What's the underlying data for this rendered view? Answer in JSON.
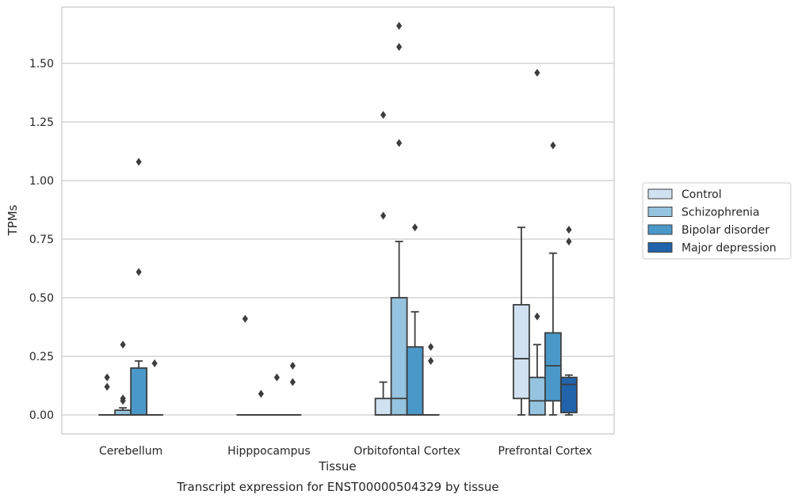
{
  "caption": "Transcript expression for ENST00000504329 by tissue",
  "chart_data": {
    "type": "box",
    "xlabel": "Tissue",
    "ylabel": "TPMs",
    "ylim": [
      -0.08,
      1.75
    ],
    "y_ticks": [
      "0.00",
      "0.25",
      "0.50",
      "0.75",
      "1.00",
      "1.25",
      "1.50"
    ],
    "grid": "horizontal",
    "legend_position": "right",
    "categories": [
      "Cerebellum",
      "Hipppocampus",
      "Orbitofontal Cortex",
      "Prefrontal Cortex"
    ],
    "series": [
      {
        "name": "Control",
        "color": "#d0e1f2",
        "boxes": [
          {
            "q1": 0,
            "median": 0,
            "q3": 0,
            "whislo": 0,
            "whishi": 0,
            "fliers": [
              0.16,
              0.12
            ]
          },
          {
            "q1": 0,
            "median": 0,
            "q3": 0,
            "whislo": 0,
            "whishi": 0,
            "fliers": [
              0.41
            ]
          },
          {
            "q1": 0,
            "median": 0,
            "q3": 0.07,
            "whislo": 0,
            "whishi": 0.14,
            "fliers": [
              1.28,
              0.85
            ]
          },
          {
            "q1": 0.07,
            "median": 0.24,
            "q3": 0.47,
            "whislo": 0,
            "whishi": 0.8,
            "fliers": []
          }
        ]
      },
      {
        "name": "Schizophrenia",
        "color": "#94c4df",
        "boxes": [
          {
            "q1": 0,
            "median": 0,
            "q3": 0.02,
            "whislo": 0,
            "whishi": 0.03,
            "fliers": [
              0.3,
              0.07,
              0.06
            ]
          },
          {
            "q1": 0,
            "median": 0,
            "q3": 0,
            "whislo": 0,
            "whishi": 0,
            "fliers": [
              0.09
            ]
          },
          {
            "q1": 0,
            "median": 0.07,
            "q3": 0.5,
            "whislo": 0,
            "whishi": 0.74,
            "fliers": [
              1.66,
              1.57,
              1.16
            ]
          },
          {
            "q1": 0,
            "median": 0.06,
            "q3": 0.16,
            "whislo": 0,
            "whishi": 0.3,
            "fliers": [
              1.46,
              0.42
            ]
          }
        ]
      },
      {
        "name": "Bipolar disorder",
        "color": "#4a98c9",
        "boxes": [
          {
            "q1": 0,
            "median": 0,
            "q3": 0.2,
            "whislo": 0,
            "whishi": 0.23,
            "fliers": [
              1.08,
              0.61
            ]
          },
          {
            "q1": 0,
            "median": 0,
            "q3": 0,
            "whislo": 0,
            "whishi": 0,
            "fliers": [
              0.16
            ]
          },
          {
            "q1": 0,
            "median": 0,
            "q3": 0.29,
            "whislo": 0,
            "whishi": 0.44,
            "fliers": [
              0.8
            ]
          },
          {
            "q1": 0.06,
            "median": 0.21,
            "q3": 0.35,
            "whislo": 0,
            "whishi": 0.69,
            "fliers": [
              1.15
            ]
          }
        ]
      },
      {
        "name": "Major depression",
        "color": "#2164ab",
        "boxes": [
          {
            "q1": 0,
            "median": 0,
            "q3": 0,
            "whislo": 0,
            "whishi": 0,
            "fliers": [
              0.22
            ]
          },
          {
            "q1": 0,
            "median": 0,
            "q3": 0,
            "whislo": 0,
            "whishi": 0,
            "fliers": [
              0.21,
              0.14
            ]
          },
          {
            "q1": 0,
            "median": 0,
            "q3": 0,
            "whislo": 0,
            "whishi": 0,
            "fliers": [
              0.29,
              0.23
            ]
          },
          {
            "q1": 0.01,
            "median": 0.13,
            "q3": 0.16,
            "whislo": 0,
            "whishi": 0.17,
            "fliers": [
              0.79,
              0.74
            ]
          }
        ]
      }
    ]
  }
}
